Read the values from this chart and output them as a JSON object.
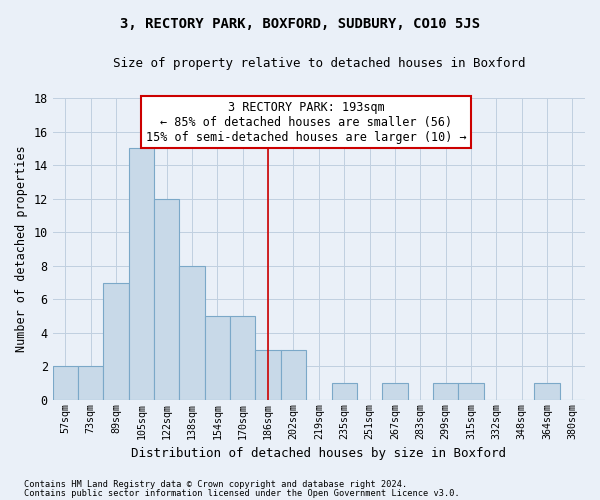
{
  "title": "3, RECTORY PARK, BOXFORD, SUDBURY, CO10 5JS",
  "subtitle": "Size of property relative to detached houses in Boxford",
  "xlabel": "Distribution of detached houses by size in Boxford",
  "ylabel": "Number of detached properties",
  "bar_labels": [
    "57sqm",
    "73sqm",
    "89sqm",
    "105sqm",
    "122sqm",
    "138sqm",
    "154sqm",
    "170sqm",
    "186sqm",
    "202sqm",
    "219sqm",
    "235sqm",
    "251sqm",
    "267sqm",
    "283sqm",
    "299sqm",
    "315sqm",
    "332sqm",
    "348sqm",
    "364sqm",
    "380sqm"
  ],
  "bar_values": [
    2,
    2,
    7,
    15,
    12,
    8,
    5,
    5,
    3,
    3,
    0,
    1,
    0,
    1,
    0,
    1,
    1,
    0,
    0,
    1,
    0
  ],
  "bar_color": "#c8d9e8",
  "bar_edgecolor": "#7ba8c8",
  "bar_linewidth": 0.8,
  "vline_x": 8.0,
  "vline_color": "#cc0000",
  "ylim": [
    0,
    18
  ],
  "yticks": [
    0,
    2,
    4,
    6,
    8,
    10,
    12,
    14,
    16,
    18
  ],
  "annotation_text": "3 RECTORY PARK: 193sqm\n← 85% of detached houses are smaller (56)\n15% of semi-detached houses are larger (10) →",
  "annotation_box_edgecolor": "#cc0000",
  "annotation_box_facecolor": "#ffffff",
  "grid_color": "#c0cfe0",
  "background_color": "#eaf0f8",
  "footnote1": "Contains HM Land Registry data © Crown copyright and database right 2024.",
  "footnote2": "Contains public sector information licensed under the Open Government Licence v3.0."
}
